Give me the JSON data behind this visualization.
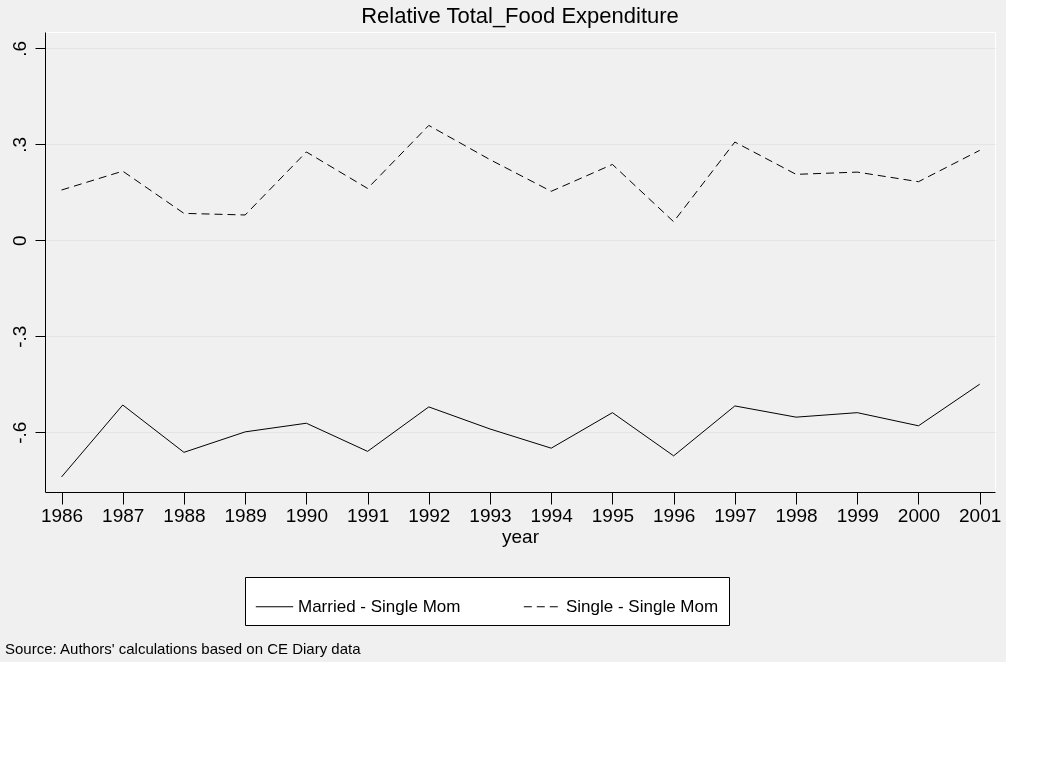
{
  "chart_data": {
    "type": "line",
    "title": "Relative Total_Food Expenditure",
    "xlabel": "year",
    "x": [
      1986,
      1987,
      1988,
      1989,
      1990,
      1991,
      1992,
      1993,
      1994,
      1995,
      1996,
      1997,
      1998,
      1999,
      2000,
      2001
    ],
    "series": [
      {
        "name": "Married - Single Mom",
        "color": "#000000",
        "line_style": "solid",
        "values": [
          -0.74,
          -0.515,
          -0.663,
          -0.599,
          -0.572,
          -0.66,
          -0.521,
          -0.59,
          -0.65,
          -0.539,
          -0.674,
          -0.518,
          -0.553,
          -0.539,
          -0.58,
          -0.45
        ]
      },
      {
        "name": "Single - Single Mom",
        "color": "#000000",
        "line_style": "dashed",
        "values": [
          0.157,
          0.216,
          0.084,
          0.079,
          0.276,
          0.162,
          0.359,
          0.252,
          0.153,
          0.237,
          0.058,
          0.307,
          0.206,
          0.213,
          0.183,
          0.281
        ]
      }
    ],
    "xlim": [
      1985.73,
      2001.25
    ],
    "xticks": [
      1986,
      1987,
      1988,
      1989,
      1990,
      1991,
      1992,
      1993,
      1994,
      1995,
      1996,
      1997,
      1998,
      1999,
      2000,
      2001
    ],
    "ylim": [
      -0.787,
      0.651
    ],
    "yticks": [
      {
        "value": -0.6,
        "label": "-.6"
      },
      {
        "value": -0.3,
        "label": "-.3"
      },
      {
        "value": 0,
        "label": "0"
      },
      {
        "value": 0.3,
        "label": ".3"
      },
      {
        "value": 0.6,
        "label": ".6"
      }
    ],
    "grid": "y",
    "legend": "bottom",
    "marker": "none",
    "annotations": [
      "Source: Authors' calculations based on CE Diary data"
    ]
  }
}
